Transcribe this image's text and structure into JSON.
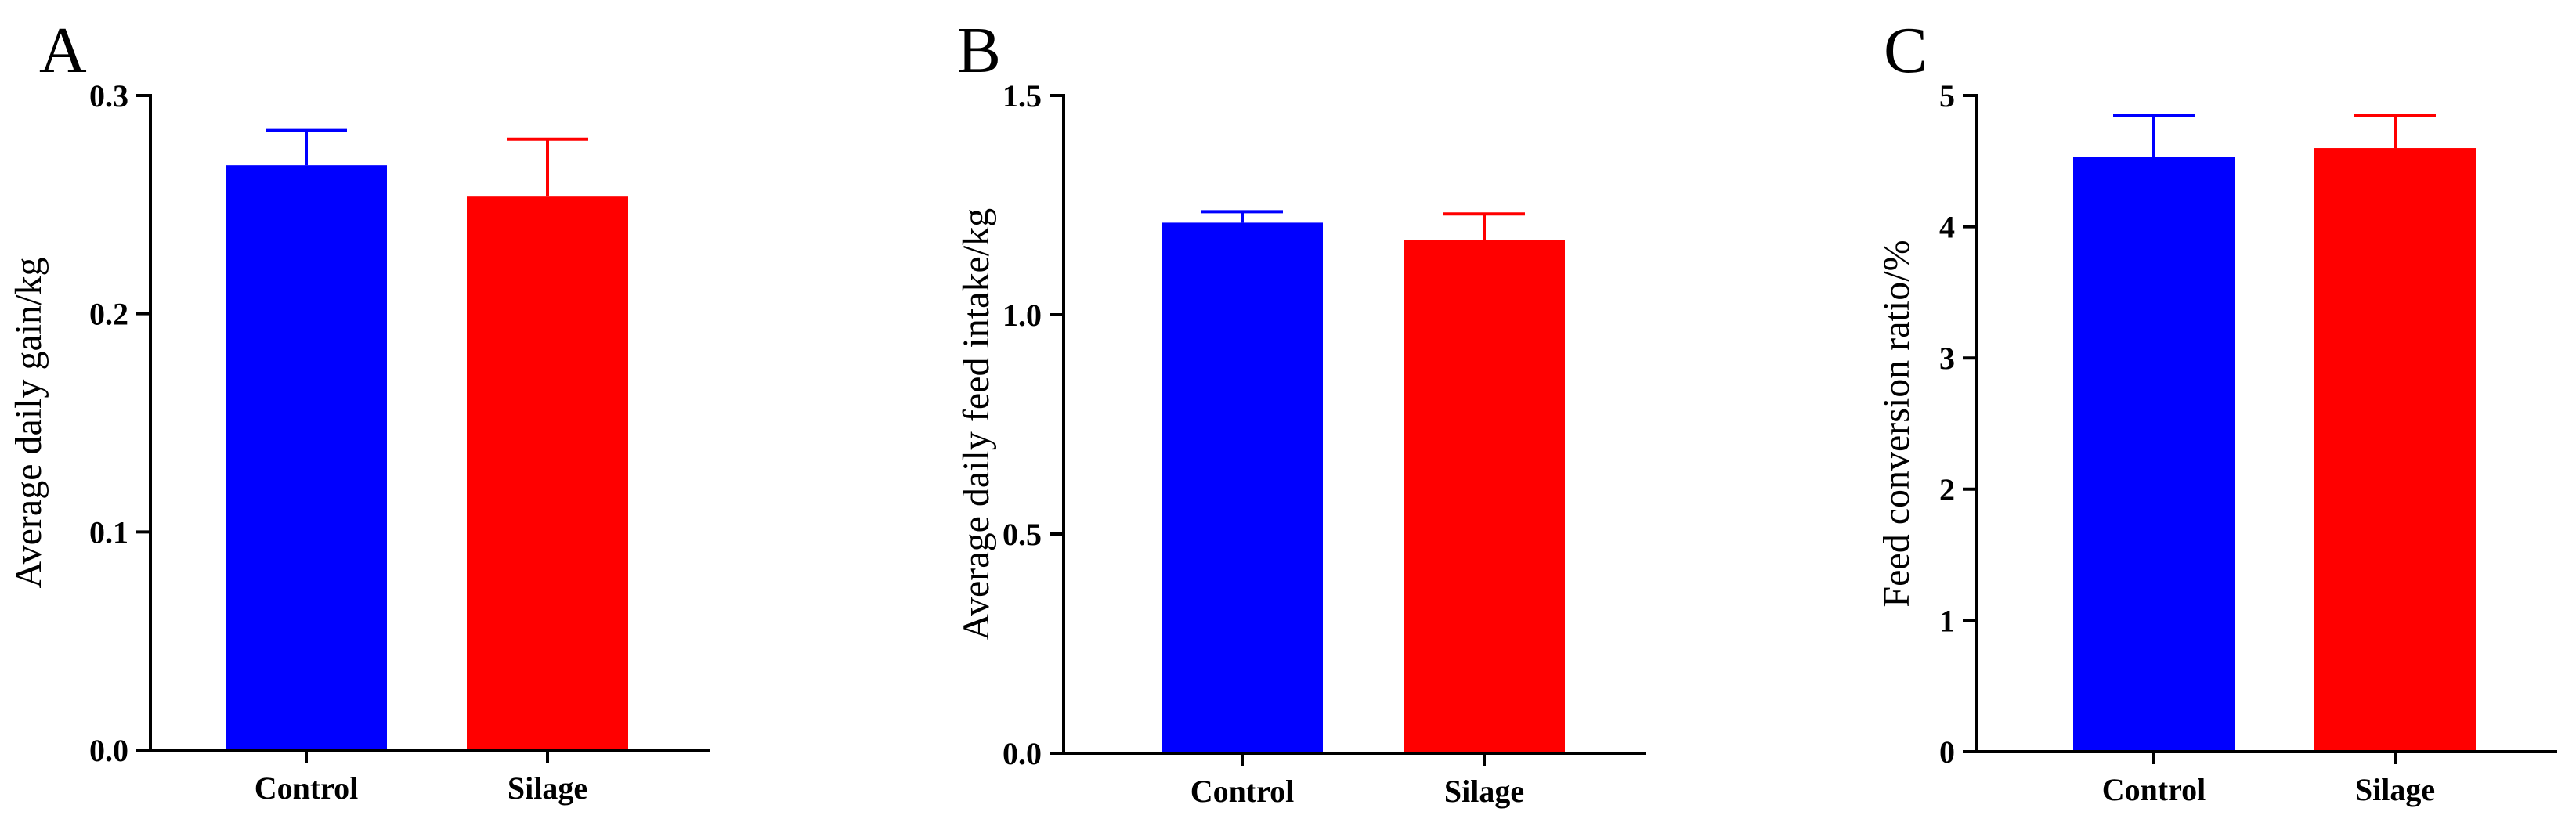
{
  "chart_data": [
    {
      "panel": "A",
      "type": "bar",
      "ylabel": "Average daily gain/kg",
      "categories": [
        "Control",
        "Silage"
      ],
      "values": [
        0.268,
        0.254
      ],
      "errors": [
        0.016,
        0.026
      ],
      "colors": [
        "#0000ff",
        "#ff0000"
      ],
      "ylim": [
        0,
        0.3
      ],
      "yticks": [
        0.0,
        0.1,
        0.2,
        0.3
      ],
      "ytick_labels": [
        "0.0",
        "0.1",
        "0.2",
        "0.3"
      ]
    },
    {
      "panel": "B",
      "type": "bar",
      "ylabel": "Average daily feed intake/kg",
      "categories": [
        "Control",
        "Silage"
      ],
      "values": [
        1.21,
        1.17
      ],
      "errors": [
        0.025,
        0.06
      ],
      "colors": [
        "#0000ff",
        "#ff0000"
      ],
      "ylim": [
        0,
        1.5
      ],
      "yticks": [
        0.0,
        0.5,
        1.0,
        1.5
      ],
      "ytick_labels": [
        "0.0",
        "0.5",
        "1.0",
        "1.5"
      ]
    },
    {
      "panel": "C",
      "type": "bar",
      "ylabel": "Feed conversion ratio/%",
      "categories": [
        "Control",
        "Silage"
      ],
      "values": [
        4.53,
        4.6
      ],
      "errors": [
        0.32,
        0.25
      ],
      "colors": [
        "#0000ff",
        "#ff0000"
      ],
      "ylim": [
        0,
        5
      ],
      "yticks": [
        0,
        1,
        2,
        3,
        4,
        5
      ],
      "ytick_labels": [
        "0",
        "1",
        "2",
        "3",
        "4",
        "5"
      ]
    }
  ]
}
